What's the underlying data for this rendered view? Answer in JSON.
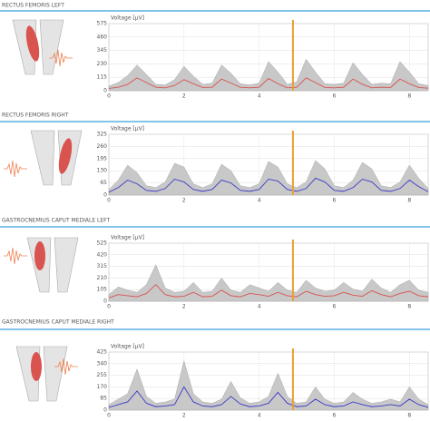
{
  "chart_data": [
    {
      "type": "line",
      "title": "RECTUS FEMORIS LEFT",
      "ylabel": "Voltage [µV]",
      "x": [
        0,
        0.25,
        0.5,
        0.75,
        1,
        1.25,
        1.5,
        1.75,
        2,
        2.25,
        2.5,
        2.75,
        3,
        3.25,
        3.5,
        3.75,
        4,
        4.25,
        4.5,
        4.75,
        5,
        5.25,
        5.5,
        5.75,
        6,
        6.25,
        6.5,
        6.75,
        7,
        7.25,
        7.5,
        7.75,
        8,
        8.25,
        8.5
      ],
      "xlim": [
        0,
        8.5
      ],
      "xticks": [
        0,
        2,
        4,
        6,
        8
      ],
      "ylim": [
        0,
        575
      ],
      "yticks": [
        0,
        115,
        230,
        345,
        460,
        575
      ],
      "grid": true,
      "cursor": 4.9,
      "cursor_color": "#e8a030",
      "series": [
        {
          "kind": "area",
          "color": "#c8c8c8",
          "values": [
            40,
            70,
            130,
            220,
            140,
            55,
            50,
            95,
            210,
            125,
            55,
            65,
            220,
            150,
            60,
            50,
            65,
            250,
            160,
            55,
            75,
            270,
            160,
            60,
            55,
            65,
            240,
            140,
            55,
            65,
            60,
            250,
            160,
            60,
            45
          ]
        },
        {
          "kind": "line",
          "color": "#d9534f",
          "values": [
            20,
            30,
            55,
            110,
            70,
            30,
            25,
            45,
            95,
            60,
            28,
            30,
            100,
            65,
            30,
            25,
            30,
            105,
            60,
            25,
            30,
            110,
            70,
            28,
            25,
            30,
            100,
            55,
            25,
            30,
            28,
            100,
            60,
            28,
            22
          ]
        }
      ]
    },
    {
      "type": "line",
      "title": "RECTUS FEMORIS RIGHT",
      "ylabel": "Voltage [µV]",
      "x": [
        0,
        0.25,
        0.5,
        0.75,
        1,
        1.25,
        1.5,
        1.75,
        2,
        2.25,
        2.5,
        2.75,
        3,
        3.25,
        3.5,
        3.75,
        4,
        4.25,
        4.5,
        4.75,
        5,
        5.25,
        5.5,
        5.75,
        6,
        6.25,
        6.5,
        6.75,
        7,
        7.25,
        7.5,
        7.75,
        8,
        8.25,
        8.5
      ],
      "xlim": [
        0,
        8.5
      ],
      "xticks": [
        0,
        2,
        4,
        6,
        8
      ],
      "ylim": [
        0,
        325
      ],
      "yticks": [
        0,
        65,
        130,
        195,
        260,
        325
      ],
      "grid": true,
      "cursor": 4.9,
      "cursor_color": "#e8a030",
      "series": [
        {
          "kind": "area",
          "color": "#c8c8c8",
          "values": [
            30,
            80,
            160,
            120,
            50,
            40,
            70,
            170,
            150,
            60,
            40,
            60,
            165,
            130,
            50,
            40,
            60,
            180,
            150,
            60,
            40,
            70,
            185,
            140,
            50,
            40,
            80,
            175,
            140,
            50,
            40,
            70,
            160,
            90,
            35
          ]
        },
        {
          "kind": "line",
          "color": "#3a3ac8",
          "values": [
            15,
            40,
            80,
            60,
            25,
            20,
            35,
            85,
            70,
            30,
            20,
            30,
            80,
            65,
            25,
            20,
            30,
            85,
            75,
            30,
            20,
            35,
            90,
            70,
            25,
            20,
            40,
            85,
            70,
            25,
            20,
            35,
            80,
            45,
            18
          ]
        }
      ]
    },
    {
      "type": "line",
      "title": "GASTROCNEMIUS CAPUT MEDIALE LEFT",
      "ylabel": "Voltage [µV]",
      "x": [
        0,
        0.25,
        0.5,
        0.75,
        1,
        1.25,
        1.5,
        1.75,
        2,
        2.25,
        2.5,
        2.75,
        3,
        3.25,
        3.5,
        3.75,
        4,
        4.25,
        4.5,
        4.75,
        5,
        5.25,
        5.5,
        5.75,
        6,
        6.25,
        6.5,
        6.75,
        7,
        7.25,
        7.5,
        7.75,
        8,
        8.25,
        8.5
      ],
      "xlim": [
        0,
        8.5
      ],
      "xticks": [
        0,
        2,
        4,
        6,
        8
      ],
      "ylim": [
        0,
        525
      ],
      "yticks": [
        0,
        105,
        210,
        315,
        420,
        525
      ],
      "grid": true,
      "cursor": 4.9,
      "cursor_color": "#e8a030",
      "series": [
        {
          "kind": "area",
          "color": "#c8c8c8",
          "values": [
            60,
            130,
            100,
            80,
            150,
            330,
            120,
            80,
            90,
            170,
            80,
            90,
            210,
            100,
            80,
            150,
            120,
            90,
            170,
            100,
            80,
            190,
            120,
            90,
            100,
            170,
            110,
            90,
            200,
            120,
            80,
            150,
            190,
            100,
            80
          ]
        },
        {
          "kind": "line",
          "color": "#d9534f",
          "values": [
            30,
            60,
            50,
            40,
            70,
            150,
            60,
            40,
            45,
            80,
            40,
            45,
            100,
            50,
            40,
            70,
            60,
            45,
            80,
            50,
            40,
            90,
            60,
            45,
            50,
            80,
            55,
            45,
            95,
            60,
            40,
            70,
            90,
            50,
            40
          ]
        }
      ]
    },
    {
      "type": "line",
      "title": "GASTROCNEMIUS CAPUT MEDIALE RIGHT",
      "ylabel": "Voltage [µV]",
      "x": [
        0,
        0.25,
        0.5,
        0.75,
        1,
        1.25,
        1.5,
        1.75,
        2,
        2.25,
        2.5,
        2.75,
        3,
        3.25,
        3.5,
        3.75,
        4,
        4.25,
        4.5,
        4.75,
        5,
        5.25,
        5.5,
        5.75,
        6,
        6.25,
        6.5,
        6.75,
        7,
        7.25,
        7.5,
        7.75,
        8,
        8.25,
        8.5
      ],
      "xlim": [
        0,
        8.5
      ],
      "xticks": [
        0,
        2,
        4,
        6,
        8
      ],
      "ylim": [
        0,
        425
      ],
      "yticks": [
        0,
        85,
        170,
        255,
        340,
        425
      ],
      "grid": true,
      "cursor": 4.9,
      "cursor_color": "#e8a030",
      "series": [
        {
          "kind": "area",
          "color": "#c8c8c8",
          "values": [
            40,
            80,
            120,
            300,
            100,
            50,
            60,
            80,
            360,
            120,
            60,
            50,
            80,
            210,
            90,
            50,
            60,
            100,
            270,
            100,
            50,
            60,
            170,
            80,
            50,
            60,
            130,
            80,
            50,
            60,
            80,
            60,
            170,
            80,
            40
          ]
        },
        {
          "kind": "line",
          "color": "#3a3ac8",
          "values": [
            20,
            40,
            60,
            140,
            50,
            25,
            30,
            40,
            170,
            60,
            30,
            25,
            40,
            100,
            45,
            25,
            30,
            50,
            130,
            50,
            25,
            30,
            80,
            40,
            25,
            30,
            60,
            40,
            25,
            30,
            40,
            30,
            80,
            40,
            20
          ]
        }
      ]
    }
  ]
}
